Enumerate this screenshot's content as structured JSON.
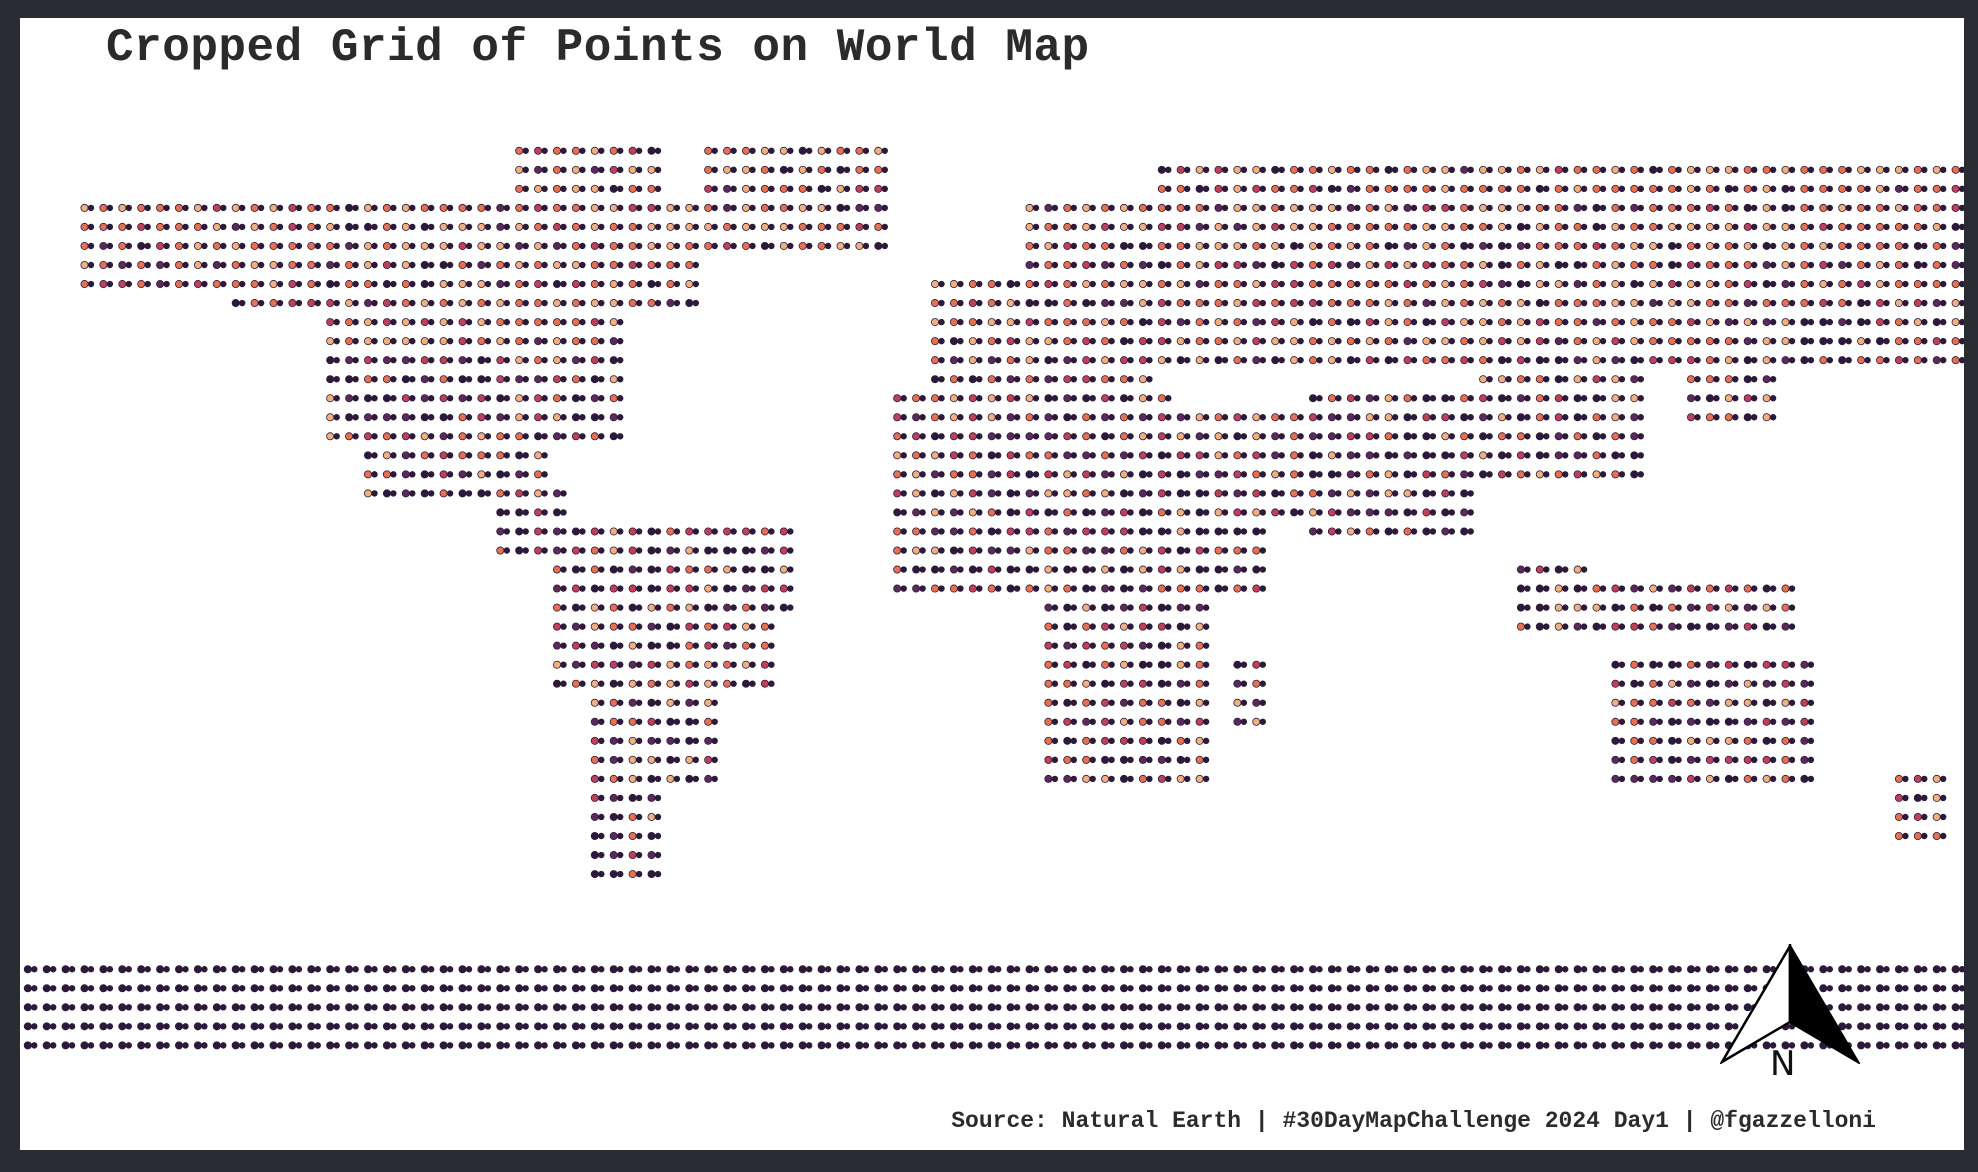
{
  "title": "Cropped Grid of Points on World Map",
  "caption": "Source: Natural Earth | #30DayMapChallenge 2024 Day1 | @fgazzelloni",
  "north_arrow": {
    "label": "N",
    "icon": "north-arrow-icon"
  },
  "colors": {
    "background": "#ffffff",
    "frame": "#2a2c33",
    "point_palette": [
      "#2d1a3b",
      "#5c2a5a",
      "#c23f5a",
      "#e8704f",
      "#f2b07e"
    ]
  },
  "map": {
    "projection": "equirectangular",
    "grid_step_degrees": 3.5,
    "point_style": "double-circle",
    "land_boxes": [
      {
        "lon": [
          -168,
          -140
        ],
        "lat": [
          55,
          72
        ]
      },
      {
        "lon": [
          -140,
          -55
        ],
        "lat": [
          50,
          72
        ]
      },
      {
        "lon": [
          -125,
          -68
        ],
        "lat": [
          28,
          50
        ]
      },
      {
        "lon": [
          -117,
          -82
        ],
        "lat": [
          15,
          30
        ]
      },
      {
        "lon": [
          -92,
          -77
        ],
        "lat": [
          7,
          18
        ]
      },
      {
        "lon": [
          -80,
          -35
        ],
        "lat": [
          -5,
          12
        ]
      },
      {
        "lon": [
          -80,
          -40
        ],
        "lat": [
          -20,
          -5
        ]
      },
      {
        "lon": [
          -75,
          -52
        ],
        "lat": [
          -35,
          -20
        ]
      },
      {
        "lon": [
          -75,
          -62
        ],
        "lat": [
          -55,
          -35
        ]
      },
      {
        "lon": [
          -90,
          -60
        ],
        "lat": [
          72,
          83
        ]
      },
      {
        "lon": [
          -55,
          -20
        ],
        "lat": [
          60,
          83
        ]
      },
      {
        "lon": [
          -10,
          30
        ],
        "lat": [
          36,
          58
        ]
      },
      {
        "lon": [
          5,
          40
        ],
        "lat": [
          58,
          71
        ]
      },
      {
        "lon": [
          30,
          180
        ],
        "lat": [
          42,
          77
        ]
      },
      {
        "lon": [
          -17,
          35
        ],
        "lat": [
          15,
          36
        ]
      },
      {
        "lon": [
          -17,
          50
        ],
        "lat": [
          0,
          15
        ]
      },
      {
        "lon": [
          8,
          42
        ],
        "lat": [
          -35,
          0
        ]
      },
      {
        "lon": [
          43,
          51
        ],
        "lat": [
          -25,
          -12
        ]
      },
      {
        "lon": [
          35,
          60
        ],
        "lat": [
          12,
          32
        ]
      },
      {
        "lon": [
          60,
          90
        ],
        "lat": [
          8,
          35
        ]
      },
      {
        "lon": [
          90,
          122
        ],
        "lat": [
          18,
          42
        ]
      },
      {
        "lon": [
          96,
          110
        ],
        "lat": [
          -8,
          5
        ]
      },
      {
        "lon": [
          110,
          150
        ],
        "lat": [
          -8,
          0
        ]
      },
      {
        "lon": [
          113,
          154
        ],
        "lat": [
          -38,
          -12
        ]
      },
      {
        "lon": [
          166,
          178
        ],
        "lat": [
          -46,
          -35
        ]
      },
      {
        "lon": [
          128,
          145
        ],
        "lat": [
          31,
          45
        ]
      },
      {
        "lon": [
          -180,
          180
        ],
        "lat": [
          -90,
          -68
        ]
      }
    ]
  }
}
